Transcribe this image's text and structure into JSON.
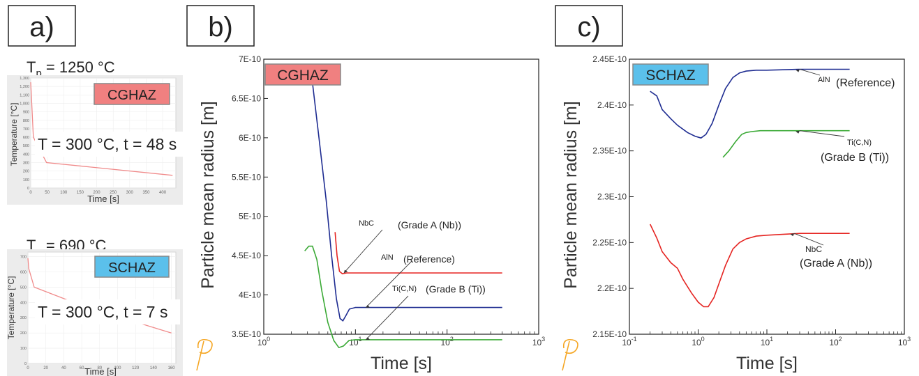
{
  "panels": {
    "a": {
      "label": "a)"
    },
    "b": {
      "label": "b)"
    },
    "c": {
      "label": "c)"
    }
  },
  "thermal": {
    "top": {
      "peak": "T",
      "peak_sub": "p",
      "peak_value": " = 1250 °C",
      "badge": "CGHAZ",
      "annotation": "T = 300 °C, t = 48 s",
      "ylabel": "Temperature [°C]",
      "xlabel": "Time [s]",
      "yticks": [
        "0",
        "100",
        "200",
        "300",
        "400",
        "500",
        "600",
        "700",
        "800",
        "900",
        "1,000",
        "1,100",
        "1,200",
        "1,300"
      ],
      "xticks": [
        "0",
        "50",
        "100",
        "150",
        "200",
        "250",
        "300",
        "350",
        "400"
      ],
      "profile": {
        "time_s": [
          0,
          2,
          8,
          48,
          430
        ],
        "temp_c": [
          1250,
          1100,
          600,
          300,
          150
        ]
      }
    },
    "bottom": {
      "peak": "T",
      "peak_sub": "p",
      "peak_value": " = 690 °C",
      "badge": "SCHAZ",
      "annotation": "T = 300 °C, t = 7 s",
      "ylabel": "Temperature [°C]",
      "xlabel": "Time [s]",
      "yticks": [
        "0",
        "100",
        "200",
        "300",
        "400",
        "500",
        "600",
        "700"
      ],
      "xticks": [
        "0",
        "20",
        "40",
        "60",
        "80",
        "100",
        "120",
        "140",
        "160"
      ],
      "profile": {
        "time_s": [
          0,
          1,
          7,
          60,
          160
        ],
        "temp_c": [
          690,
          620,
          500,
          380,
          200
        ]
      }
    }
  },
  "colors": {
    "cghaz_badge": "#f08080",
    "schaz_badge": "#5bc0eb",
    "nbc": "#e52421",
    "aln": "#1e2c91",
    "tic": "#3aa935",
    "logo": "#f5a623"
  },
  "chart_data": [
    {
      "type": "line",
      "badge": "CGHAZ",
      "xlabel": "Time [s]",
      "ylabel": "Particle mean radius [m]",
      "xscale": "log",
      "xlim": [
        1,
        1000
      ],
      "ylim": [
        3.5e-10,
        7e-10
      ],
      "xticks": [
        {
          "base": "10",
          "exp": "0",
          "v": 1
        },
        {
          "base": "10",
          "exp": "1",
          "v": 10
        },
        {
          "base": "10",
          "exp": "2",
          "v": 100
        },
        {
          "base": "10",
          "exp": "3",
          "v": 1000
        }
      ],
      "yticks": [
        "3.5E-10",
        "4E-10",
        "4.5E-10",
        "5E-10",
        "5.5E-10",
        "6E-10",
        "6.5E-10",
        "7E-10"
      ],
      "grid": false,
      "series": [
        {
          "name": "NbC",
          "note": "(Grade A (Nb))",
          "color": "#e52421",
          "x": [
            6.0,
            6.3,
            6.7,
            7.2,
            8.0,
            10,
            20,
            50,
            100,
            400
          ],
          "y": [
            4.8e-10,
            4.5e-10,
            4.3e-10,
            4.27e-10,
            4.28e-10,
            4.28e-10,
            4.28e-10,
            4.28e-10,
            4.28e-10,
            4.28e-10
          ]
        },
        {
          "name": "AlN",
          "note": "(Reference)",
          "color": "#1e2c91",
          "x": [
            3.4,
            4.0,
            4.8,
            5.5,
            6.2,
            6.8,
            7.3,
            7.9,
            8.6,
            10,
            20,
            100,
            400
          ],
          "y": [
            6.7e-10,
            6e-10,
            5.2e-10,
            4.5e-10,
            3.95e-10,
            3.7e-10,
            3.67e-10,
            3.74e-10,
            3.82e-10,
            3.84e-10,
            3.84e-10,
            3.84e-10,
            3.84e-10
          ]
        },
        {
          "name": "Ti(C,N)",
          "note": "(Grade B (Ti))",
          "color": "#3aa935",
          "x": [
            2.8,
            3.1,
            3.4,
            3.8,
            4.3,
            5.0,
            5.8,
            6.6,
            7.4,
            8.5,
            10,
            20,
            100,
            400
          ],
          "y": [
            4.56e-10,
            4.62e-10,
            4.62e-10,
            4.45e-10,
            4.05e-10,
            3.65e-10,
            3.42e-10,
            3.33e-10,
            3.35e-10,
            3.42e-10,
            3.43e-10,
            3.43e-10,
            3.43e-10,
            3.43e-10
          ]
        }
      ],
      "annotations": [
        {
          "series": "NbC",
          "label": "NbC",
          "note": "(Grade A (Nb))",
          "at": [
            7.5,
            4.28e-10
          ]
        },
        {
          "series": "AlN",
          "label": "AlN",
          "note": "(Reference)",
          "at": [
            13,
            3.84e-10
          ]
        },
        {
          "series": "Ti(C,N)",
          "label": "Ti(C,N)",
          "note": "(Grade B (Ti))",
          "at": [
            13,
            3.43e-10
          ]
        }
      ]
    },
    {
      "type": "line",
      "badge": "SCHAZ",
      "xlabel": "Time [s]",
      "ylabel": "Particle mean radius [m]",
      "xscale": "log",
      "xlim": [
        0.1,
        1000
      ],
      "ylim": [
        2.15e-10,
        2.45e-10
      ],
      "xticks": [
        {
          "base": "10",
          "exp": "-1",
          "v": 0.1
        },
        {
          "base": "10",
          "exp": "0",
          "v": 1
        },
        {
          "base": "10",
          "exp": "1",
          "v": 10
        },
        {
          "base": "10",
          "exp": "2",
          "v": 100
        },
        {
          "base": "10",
          "exp": "3",
          "v": 1000
        }
      ],
      "yticks": [
        "2.15E-10",
        "2.2E-10",
        "2.25E-10",
        "2.3E-10",
        "2.35E-10",
        "2.4E-10",
        "2.45E-10"
      ],
      "grid": false,
      "series": [
        {
          "name": "AlN",
          "note": "(Reference)",
          "color": "#1e2c91",
          "x": [
            0.2,
            0.25,
            0.3,
            0.4,
            0.5,
            0.7,
            0.9,
            1.1,
            1.3,
            1.6,
            2.0,
            2.5,
            3.2,
            4.0,
            5.0,
            7.0,
            10,
            30,
            160
          ],
          "y": [
            2.415e-10,
            2.41e-10,
            2.395e-10,
            2.385e-10,
            2.378e-10,
            2.37e-10,
            2.366e-10,
            2.364e-10,
            2.368e-10,
            2.38e-10,
            2.4e-10,
            2.418e-10,
            2.43e-10,
            2.435e-10,
            2.437e-10,
            2.438e-10,
            2.438e-10,
            2.439e-10,
            2.439e-10
          ]
        },
        {
          "name": "Ti(C,N)",
          "note": "(Grade B (Ti))",
          "color": "#3aa935",
          "x": [
            2.3,
            2.8,
            3.5,
            4.3,
            5.0,
            6.0,
            8.0,
            12,
            30,
            160
          ],
          "y": [
            2.343e-10,
            2.35e-10,
            2.36e-10,
            2.368e-10,
            2.37e-10,
            2.371e-10,
            2.372e-10,
            2.372e-10,
            2.372e-10,
            2.372e-10
          ]
        },
        {
          "name": "NbC",
          "note": "(Grade A (Nb))",
          "color": "#e52421",
          "x": [
            0.2,
            0.25,
            0.3,
            0.4,
            0.5,
            0.6,
            0.8,
            1.0,
            1.2,
            1.4,
            1.7,
            2.0,
            2.5,
            3.2,
            4.0,
            5.0,
            7.0,
            10,
            30,
            160
          ],
          "y": [
            2.27e-10,
            2.255e-10,
            2.24e-10,
            2.228e-10,
            2.222e-10,
            2.21e-10,
            2.195e-10,
            2.185e-10,
            2.18e-10,
            2.18e-10,
            2.19e-10,
            2.205e-10,
            2.225e-10,
            2.243e-10,
            2.25e-10,
            2.254e-10,
            2.257e-10,
            2.258e-10,
            2.26e-10,
            2.26e-10
          ]
        }
      ],
      "annotations": [
        {
          "series": "AlN",
          "label": "AlN",
          "note": "(Reference)",
          "at": [
            30,
            2.439e-10
          ]
        },
        {
          "series": "Ti(C,N)",
          "label": "Ti(C,N)",
          "note": "(Grade B (Ti))",
          "at": [
            30,
            2.372e-10
          ]
        },
        {
          "series": "NbC",
          "label": "NbC",
          "note": "(Grade A (Nb))",
          "at": [
            25,
            2.26e-10
          ]
        }
      ]
    }
  ]
}
